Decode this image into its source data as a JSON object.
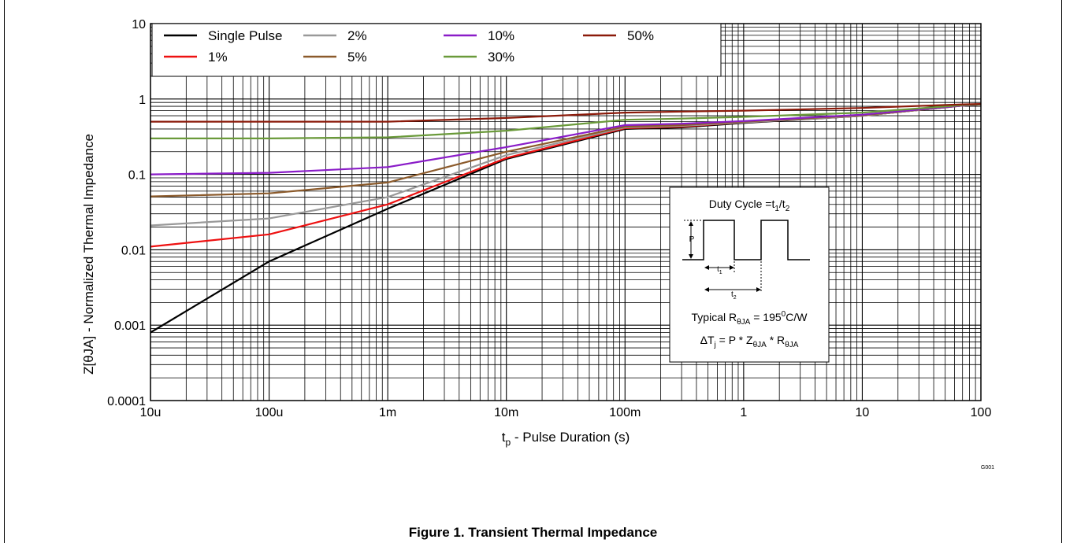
{
  "figure": {
    "caption": "Figure 1. Transient Thermal Impedance",
    "code": "G001"
  },
  "chart_data": {
    "type": "line",
    "xscale": "log",
    "yscale": "log",
    "xlim": [
      1e-05,
      100
    ],
    "ylim": [
      0.0001,
      10
    ],
    "grid": true,
    "xlabel": {
      "main": "t",
      "sub": "p",
      "rest": " - Pulse Duration (s)"
    },
    "ylabel": "Z[θJA] - Normalized Thermal Impedance",
    "xticks": [
      {
        "v": 1e-05,
        "label": "10u"
      },
      {
        "v": 0.0001,
        "label": "100u"
      },
      {
        "v": 0.001,
        "label": "1m"
      },
      {
        "v": 0.01,
        "label": "10m"
      },
      {
        "v": 0.1,
        "label": "100m"
      },
      {
        "v": 1,
        "label": "1"
      },
      {
        "v": 10,
        "label": "10"
      },
      {
        "v": 100,
        "label": "100"
      }
    ],
    "yticks": [
      {
        "v": 0.0001,
        "label": "0.0001"
      },
      {
        "v": 0.001,
        "label": "0.001"
      },
      {
        "v": 0.01,
        "label": "0.01"
      },
      {
        "v": 0.1,
        "label": "0.1"
      },
      {
        "v": 1,
        "label": "1"
      },
      {
        "v": 10,
        "label": "10"
      }
    ],
    "legend_position": "top-left",
    "series": [
      {
        "name": "Single Pulse",
        "color": "#000000",
        "x": [
          1e-05,
          0.0001,
          0.001,
          0.01,
          0.1,
          0.3,
          1,
          10,
          70,
          100
        ],
        "y": [
          0.0008,
          0.007,
          0.035,
          0.16,
          0.4,
          0.42,
          0.48,
          0.6,
          0.82,
          0.85
        ]
      },
      {
        "name": "1%",
        "color": "#ee1111",
        "x": [
          1e-05,
          0.0001,
          0.001,
          0.01,
          0.1,
          0.3,
          1,
          10,
          70,
          100
        ],
        "y": [
          0.011,
          0.016,
          0.04,
          0.165,
          0.41,
          0.43,
          0.49,
          0.6,
          0.82,
          0.85
        ]
      },
      {
        "name": "2%",
        "color": "#999999",
        "x": [
          1e-05,
          0.0001,
          0.001,
          0.01,
          0.1,
          0.3,
          1,
          10,
          70,
          100
        ],
        "y": [
          0.021,
          0.026,
          0.05,
          0.18,
          0.42,
          0.44,
          0.49,
          0.6,
          0.82,
          0.85
        ]
      },
      {
        "name": "5%",
        "color": "#8b5a2b",
        "x": [
          1e-05,
          0.0001,
          0.001,
          0.01,
          0.1,
          0.3,
          1,
          10,
          70,
          100
        ],
        "y": [
          0.051,
          0.056,
          0.078,
          0.2,
          0.43,
          0.45,
          0.5,
          0.61,
          0.82,
          0.85
        ]
      },
      {
        "name": "10%",
        "color": "#8a1cc8",
        "x": [
          1e-05,
          0.0001,
          0.001,
          0.01,
          0.1,
          0.3,
          1,
          10,
          70,
          100
        ],
        "y": [
          0.1,
          0.105,
          0.125,
          0.23,
          0.45,
          0.47,
          0.51,
          0.62,
          0.82,
          0.85
        ]
      },
      {
        "name": "30%",
        "color": "#6a9a3a",
        "x": [
          1e-05,
          0.0001,
          0.001,
          0.01,
          0.1,
          0.3,
          1,
          10,
          70,
          100
        ],
        "y": [
          0.3,
          0.3,
          0.31,
          0.38,
          0.53,
          0.55,
          0.58,
          0.66,
          0.83,
          0.85
        ]
      },
      {
        "name": "50%",
        "color": "#8b1a0a",
        "x": [
          1e-05,
          0.0001,
          0.001,
          0.01,
          0.1,
          0.3,
          1,
          10,
          70,
          100
        ],
        "y": [
          0.5,
          0.5,
          0.5,
          0.56,
          0.66,
          0.68,
          0.7,
          0.76,
          0.85,
          0.86
        ]
      }
    ],
    "inset": {
      "duty_cycle": {
        "label": "Duty Cycle =t",
        "s1": "1",
        "mid": "/t",
        "s2": "2"
      },
      "p_label": "P",
      "t1": {
        "main": "t",
        "sub": "1"
      },
      "t2": {
        "main": "t",
        "sub": "2"
      },
      "typical": {
        "pre": "Typical R",
        "sub": "θJA",
        "mid": " = 195",
        "sup": "0",
        "post": "C/W"
      },
      "formula": {
        "a": "ΔT",
        "a_sub": "j",
        "b": " = P * Z",
        "b_sub": "θJA",
        "c": " * R",
        "c_sub": "θJA"
      }
    }
  }
}
